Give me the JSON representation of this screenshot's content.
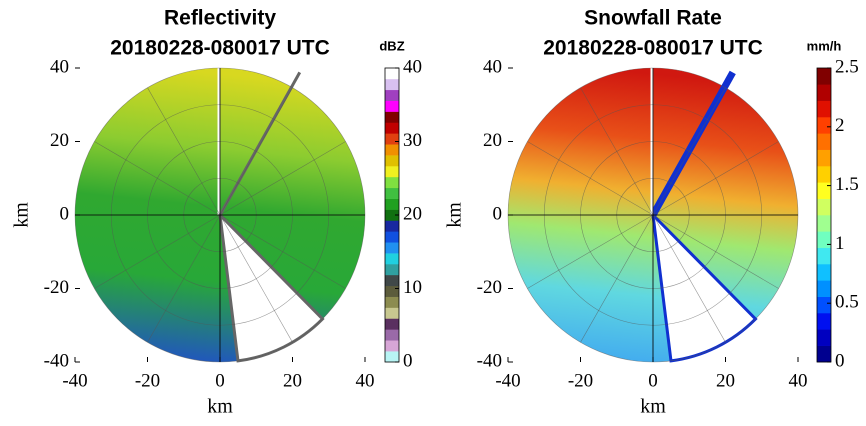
{
  "chart_data": [
    {
      "type": "ppi",
      "title": "Reflectivity",
      "subtitle": "20180228-080017 UTC",
      "xlabel": "km",
      "ylabel": "km",
      "xlim": [
        -40,
        40
      ],
      "ylim": [
        -40,
        40
      ],
      "xticks": [
        -40,
        -20,
        0,
        20,
        40
      ],
      "yticks": [
        -40,
        -20,
        0,
        20,
        40
      ],
      "colorbar": {
        "label": "dBZ",
        "lim": [
          0,
          40
        ],
        "ticks": [
          0,
          10,
          20,
          30,
          40
        ],
        "colors": [
          "#b8f4f4",
          "#d7a6d6",
          "#9a6aa8",
          "#5a3060",
          "#c8c890",
          "#8c8c50",
          "#5c5c3c",
          "#404848",
          "#30a0a0",
          "#20d0e0",
          "#2090f0",
          "#1050e0",
          "#1828a0",
          "#107010",
          "#20a020",
          "#40c040",
          "#80e040",
          "#f0f020",
          "#e0c000",
          "#f09000",
          "#e04010",
          "#c00000",
          "#800000",
          "#ff00ff",
          "#a040c0",
          "#d8c0f0",
          "#ffffff"
        ]
      }
    },
    {
      "type": "ppi",
      "title": "Snowfall Rate",
      "subtitle": "20180228-080017 UTC",
      "xlabel": "km",
      "ylabel": "km",
      "xlim": [
        -40,
        40
      ],
      "ylim": [
        -40,
        40
      ],
      "xticks": [
        -40,
        -20,
        0,
        20,
        40
      ],
      "yticks": [
        -40,
        -20,
        0,
        20,
        40
      ],
      "colorbar": {
        "label": "mm/h",
        "lim": [
          0,
          2.5
        ],
        "ticks": [
          0,
          0.5,
          1,
          1.5,
          2,
          2.5
        ],
        "colors": [
          "#00008f",
          "#0000c0",
          "#0010f0",
          "#0050ff",
          "#0090ff",
          "#10c0ff",
          "#40e8f0",
          "#70ffc0",
          "#a0ff90",
          "#d0ff60",
          "#ffff20",
          "#ffd000",
          "#ffa000",
          "#ff7000",
          "#ff4000",
          "#e01000",
          "#b00000",
          "#800000"
        ]
      }
    }
  ]
}
